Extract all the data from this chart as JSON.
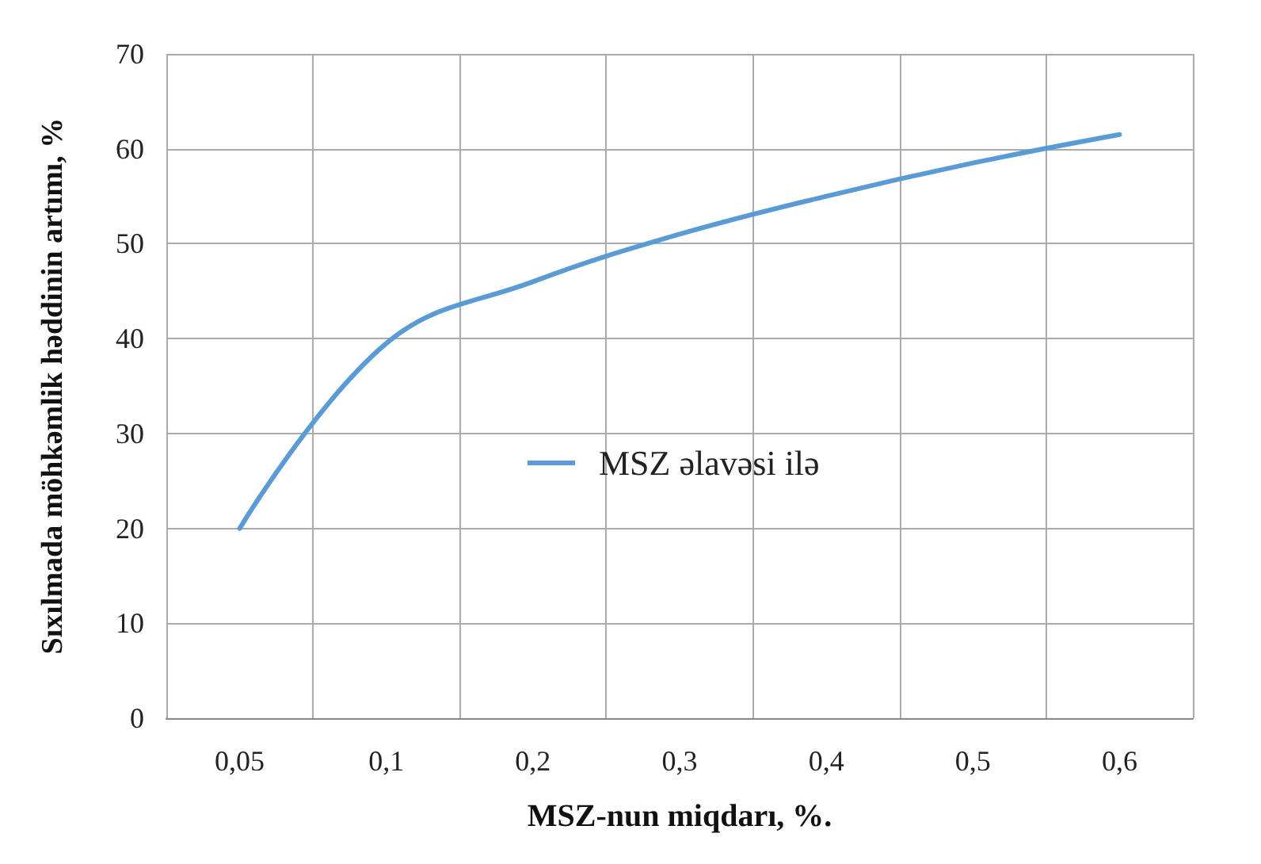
{
  "chart_data": {
    "type": "line",
    "xlabel": "MSZ-nun miqdarı, %.",
    "ylabel": "Sıxılmada möhkəmlik həddinin artımı, %",
    "categories": [
      "0,05",
      "0,1",
      "0,2",
      "0,3",
      "0,4",
      "0,5",
      "0,6"
    ],
    "series": [
      {
        "name": "MSZ əlavəsi ilə",
        "color": "#5b9bd5",
        "values": [
          20,
          39.5,
          46,
          51,
          55,
          58.5,
          61.5
        ]
      }
    ],
    "ylim": [
      0,
      70
    ],
    "yticks": [
      0,
      10,
      20,
      30,
      40,
      50,
      60,
      70
    ],
    "grid": true,
    "legend": "center",
    "marker": "none",
    "line_style": "solid"
  }
}
